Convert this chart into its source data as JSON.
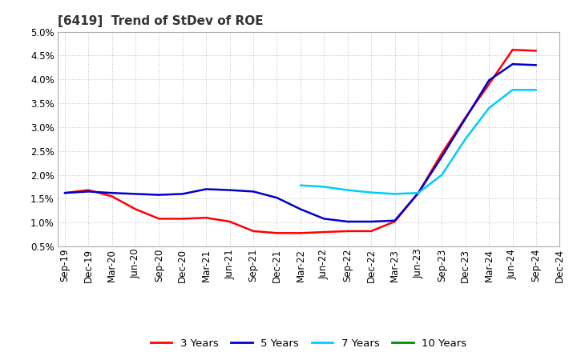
{
  "title": "[6419]  Trend of StDev of ROE",
  "x_labels": [
    "Sep-19",
    "Dec-19",
    "Mar-20",
    "Jun-20",
    "Sep-20",
    "Dec-20",
    "Mar-21",
    "Jun-21",
    "Sep-21",
    "Dec-21",
    "Mar-22",
    "Jun-22",
    "Sep-22",
    "Dec-22",
    "Mar-23",
    "Jun-23",
    "Sep-23",
    "Dec-23",
    "Mar-24",
    "Jun-24",
    "Sep-24",
    "Dec-24"
  ],
  "ylim": [
    0.005,
    0.05
  ],
  "yticks": [
    0.005,
    0.01,
    0.015,
    0.02,
    0.025,
    0.03,
    0.035,
    0.04,
    0.045,
    0.05
  ],
  "series": {
    "3 Years": {
      "color": "#FF0000",
      "data_x": [
        0,
        1,
        2,
        3,
        4,
        5,
        6,
        7,
        8,
        9,
        10,
        11,
        12,
        13,
        14,
        15,
        16,
        17,
        18,
        19,
        20
      ],
      "data_y": [
        0.0162,
        0.0168,
        0.0155,
        0.0128,
        0.0108,
        0.0108,
        0.011,
        0.0102,
        0.0082,
        0.0078,
        0.0078,
        0.008,
        0.0082,
        0.0082,
        0.0102,
        0.0162,
        0.0245,
        0.032,
        0.039,
        0.0462,
        0.046
      ]
    },
    "5 Years": {
      "color": "#0000CD",
      "data_x": [
        0,
        1,
        2,
        3,
        4,
        5,
        6,
        7,
        8,
        9,
        10,
        11,
        12,
        13,
        14,
        15,
        16,
        17,
        18,
        19,
        20
      ],
      "data_y": [
        0.0162,
        0.0165,
        0.0162,
        0.016,
        0.0158,
        0.016,
        0.017,
        0.0168,
        0.0165,
        0.0152,
        0.0128,
        0.0108,
        0.0102,
        0.0102,
        0.0104,
        0.0162,
        0.0238,
        0.0318,
        0.0398,
        0.0432,
        0.043
      ]
    },
    "7 Years": {
      "color": "#00CCFF",
      "data_x": [
        10,
        11,
        12,
        13,
        14,
        15,
        16,
        17,
        18,
        19,
        20
      ],
      "data_y": [
        0.0178,
        0.0175,
        0.0168,
        0.0163,
        0.016,
        0.0162,
        0.02,
        0.0275,
        0.034,
        0.0378,
        0.0378
      ]
    },
    "10 Years": {
      "color": "#008800",
      "data_x": [],
      "data_y": []
    }
  },
  "legend_labels": [
    "3 Years",
    "5 Years",
    "7 Years",
    "10 Years"
  ],
  "legend_colors": [
    "#FF0000",
    "#0000CD",
    "#00CCFF",
    "#008800"
  ],
  "background_color": "#FFFFFF",
  "plot_bg_color": "#FFFFFF",
  "grid_color": "#999999",
  "title_fontsize": 11,
  "tick_fontsize": 8.5
}
